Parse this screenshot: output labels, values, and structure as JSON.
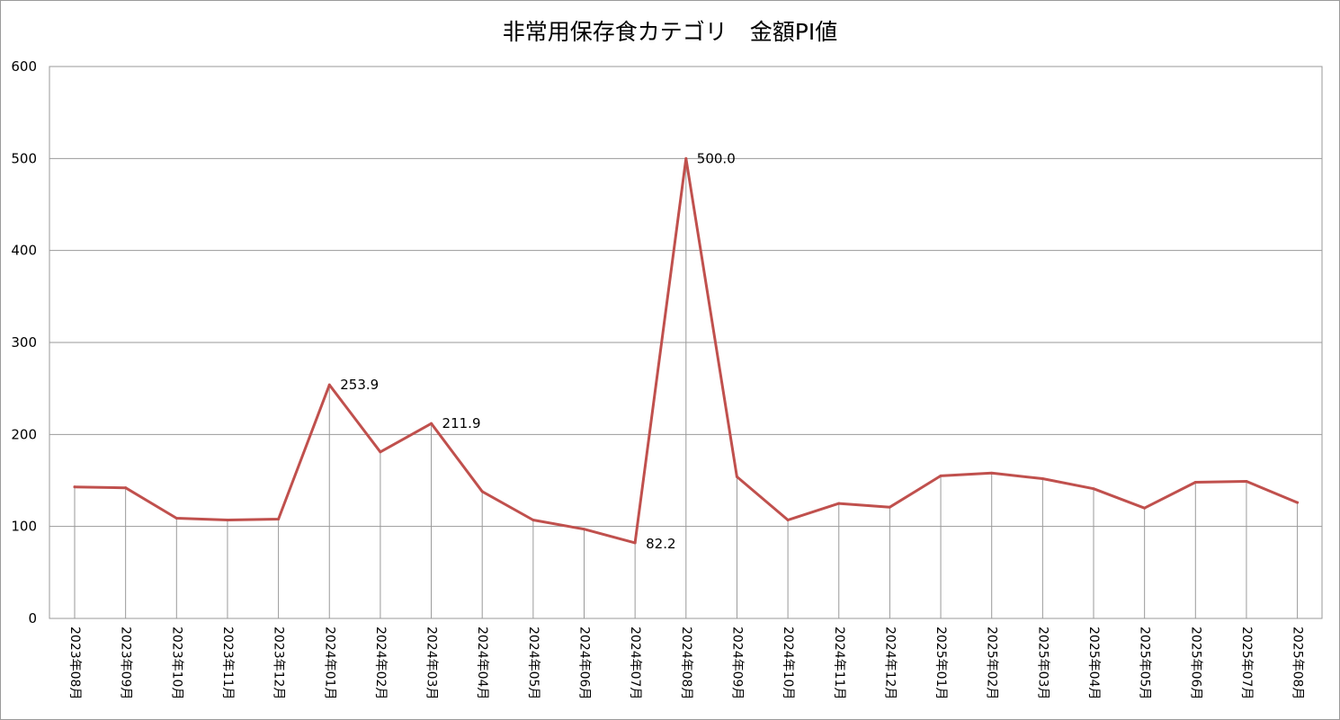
{
  "chart_data": {
    "type": "line",
    "title": "非常用保存食カテゴリ　金額PI値",
    "xlabel": "",
    "ylabel": "",
    "ylim": [
      0,
      600
    ],
    "yticks": [
      0,
      100,
      200,
      300,
      400,
      500,
      600
    ],
    "grid": true,
    "legend": "none",
    "categories": [
      "2023年08月",
      "2023年09月",
      "2023年10月",
      "2023年11月",
      "2023年12月",
      "2024年01月",
      "2024年02月",
      "2024年03月",
      "2024年04月",
      "2024年05月",
      "2024年06月",
      "2024年07月",
      "2024年08月",
      "2024年09月",
      "2024年10月",
      "2024年11月",
      "2024年12月",
      "2025年01月",
      "2025年02月",
      "2025年03月",
      "2025年04月",
      "2025年05月",
      "2025年06月",
      "2025年07月",
      "2025年08月"
    ],
    "series": [
      {
        "color": "#c0504d",
        "values": [
          143,
          142,
          109,
          107,
          108,
          253.9,
          181,
          211.9,
          138,
          107,
          97,
          82.2,
          500.0,
          154,
          107,
          125,
          121,
          155,
          158,
          152,
          141,
          120,
          148,
          149,
          126
        ]
      }
    ],
    "data_labels": [
      {
        "index": 5,
        "text": "253.9"
      },
      {
        "index": 7,
        "text": "211.9"
      },
      {
        "index": 11,
        "text": "82.2"
      },
      {
        "index": 12,
        "text": "500.0"
      }
    ]
  }
}
